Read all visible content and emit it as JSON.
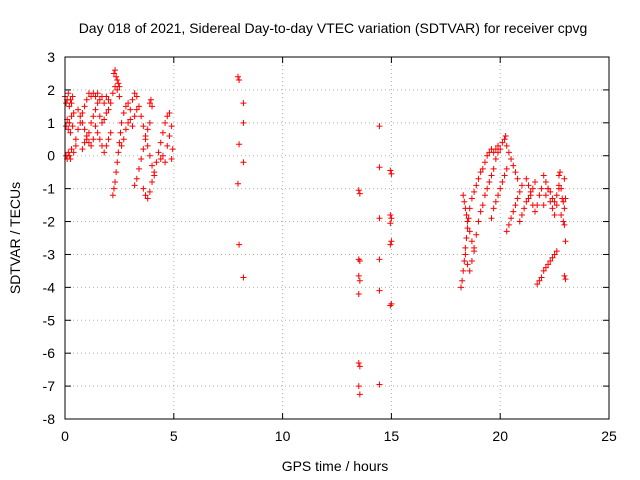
{
  "chart_data": {
    "type": "scatter",
    "title": "Day 018 of 2021, Sidereal Day-to-day VTEC variation (SDTVAR) for receiver cpvg",
    "xlabel": "GPS time / hours",
    "ylabel": "SDTVAR / TECUs",
    "xlim": [
      0,
      25
    ],
    "ylim": [
      -8,
      3
    ],
    "xticks": [
      "0",
      "5",
      "10",
      "15",
      "20",
      "25"
    ],
    "yticks": [
      "-8",
      "-7",
      "-6",
      "-5",
      "-4",
      "-3",
      "-2",
      "-1",
      "0",
      "1",
      "2",
      "3"
    ],
    "grid": true,
    "marker": "+",
    "color": "#ff0000",
    "series": [
      {
        "name": "SDTVAR",
        "points": [
          [
            0.0,
            1.8
          ],
          [
            0.05,
            1.6
          ],
          [
            0.1,
            1.7
          ],
          [
            0.15,
            1.9
          ],
          [
            0.2,
            1.5
          ],
          [
            0.25,
            1.7
          ],
          [
            0.3,
            1.6
          ],
          [
            0.35,
            1.8
          ],
          [
            0.05,
            0.9
          ],
          [
            0.1,
            1.1
          ],
          [
            0.15,
            0.8
          ],
          [
            0.2,
            1.0
          ],
          [
            0.25,
            0.7
          ],
          [
            0.3,
            1.2
          ],
          [
            0.35,
            0.9
          ],
          [
            0.4,
            1.3
          ],
          [
            0.05,
            0.0
          ],
          [
            0.1,
            -0.1
          ],
          [
            0.15,
            0.1
          ],
          [
            0.2,
            0.0
          ],
          [
            0.25,
            -0.1
          ],
          [
            0.3,
            0.2
          ],
          [
            0.4,
            0.1
          ],
          [
            0.5,
            0.3
          ],
          [
            0.5,
            0.5
          ],
          [
            0.6,
            0.8
          ],
          [
            0.7,
            1.0
          ],
          [
            0.8,
            1.3
          ],
          [
            0.9,
            1.5
          ],
          [
            1.0,
            1.7
          ],
          [
            1.1,
            1.9
          ],
          [
            1.2,
            1.8
          ],
          [
            0.6,
            1.4
          ],
          [
            0.7,
            1.2
          ],
          [
            0.8,
            1.0
          ],
          [
            0.9,
            0.8
          ],
          [
            1.0,
            0.6
          ],
          [
            1.1,
            0.4
          ],
          [
            1.2,
            0.3
          ],
          [
            1.3,
            0.5
          ],
          [
            0.8,
            0.2
          ],
          [
            0.9,
            0.4
          ],
          [
            1.0,
            0.5
          ],
          [
            1.1,
            0.7
          ],
          [
            1.2,
            1.0
          ],
          [
            1.3,
            1.2
          ],
          [
            1.4,
            1.4
          ],
          [
            1.5,
            1.6
          ],
          [
            1.3,
            1.9
          ],
          [
            1.4,
            1.8
          ],
          [
            1.5,
            1.9
          ],
          [
            1.6,
            1.7
          ],
          [
            1.7,
            1.8
          ],
          [
            1.8,
            1.6
          ],
          [
            1.9,
            1.8
          ],
          [
            2.0,
            1.7
          ],
          [
            1.4,
            0.9
          ],
          [
            1.5,
            0.7
          ],
          [
            1.6,
            0.5
          ],
          [
            1.7,
            0.3
          ],
          [
            1.8,
            0.1
          ],
          [
            1.9,
            0.3
          ],
          [
            2.0,
            0.5
          ],
          [
            2.1,
            0.7
          ],
          [
            1.6,
            1.2
          ],
          [
            1.7,
            1.0
          ],
          [
            1.8,
            1.1
          ],
          [
            1.9,
            1.3
          ],
          [
            2.0,
            1.4
          ],
          [
            2.1,
            1.6
          ],
          [
            2.2,
            1.9
          ],
          [
            2.3,
            2.1
          ],
          [
            2.25,
            2.5
          ],
          [
            2.3,
            2.6
          ],
          [
            2.35,
            2.4
          ],
          [
            2.4,
            2.3
          ],
          [
            2.45,
            2.2
          ],
          [
            2.5,
            2.1
          ],
          [
            2.4,
            2.0
          ],
          [
            2.5,
            1.8
          ],
          [
            2.2,
            -1.2
          ],
          [
            2.25,
            -1.0
          ],
          [
            2.3,
            -0.8
          ],
          [
            2.35,
            -0.5
          ],
          [
            2.4,
            -0.2
          ],
          [
            2.45,
            0.1
          ],
          [
            2.5,
            0.4
          ],
          [
            2.55,
            0.7
          ],
          [
            2.6,
            1.0
          ],
          [
            2.7,
            1.3
          ],
          [
            2.8,
            1.5
          ],
          [
            2.9,
            1.6
          ],
          [
            3.0,
            1.4
          ],
          [
            3.1,
            1.7
          ],
          [
            3.2,
            1.9
          ],
          [
            3.3,
            1.8
          ],
          [
            2.6,
            0.3
          ],
          [
            2.7,
            0.5
          ],
          [
            2.8,
            0.8
          ],
          [
            2.9,
            1.0
          ],
          [
            3.0,
            1.1
          ],
          [
            3.1,
            0.9
          ],
          [
            3.2,
            1.2
          ],
          [
            3.3,
            1.4
          ],
          [
            3.2,
            -0.9
          ],
          [
            3.3,
            -0.7
          ],
          [
            3.4,
            -0.4
          ],
          [
            3.5,
            -0.1
          ],
          [
            3.6,
            0.2
          ],
          [
            3.7,
            0.5
          ],
          [
            3.8,
            0.8
          ],
          [
            3.9,
            1.0
          ],
          [
            3.4,
            1.5
          ],
          [
            3.5,
            1.2
          ],
          [
            3.6,
            0.9
          ],
          [
            3.7,
            0.6
          ],
          [
            3.8,
            0.3
          ],
          [
            3.9,
            0.0
          ],
          [
            4.0,
            -0.3
          ],
          [
            4.1,
            -0.6
          ],
          [
            3.6,
            -1.0
          ],
          [
            3.7,
            -1.2
          ],
          [
            3.8,
            -1.3
          ],
          [
            3.9,
            -1.1
          ],
          [
            4.0,
            -0.8
          ],
          [
            4.1,
            -0.5
          ],
          [
            4.2,
            -0.2
          ],
          [
            4.3,
            0.1
          ],
          [
            3.9,
            1.6
          ],
          [
            3.95,
            1.7
          ],
          [
            4.0,
            1.5
          ],
          [
            4.4,
            0.4
          ],
          [
            4.5,
            0.7
          ],
          [
            4.6,
            1.0
          ],
          [
            4.7,
            1.2
          ],
          [
            4.8,
            1.3
          ],
          [
            4.4,
            -0.1
          ],
          [
            4.5,
            0.0
          ],
          [
            4.6,
            -0.2
          ],
          [
            4.7,
            0.3
          ],
          [
            4.8,
            0.6
          ],
          [
            4.9,
            0.9
          ],
          [
            4.95,
            0.2
          ],
          [
            4.9,
            -0.1
          ],
          [
            7.95,
            2.4
          ],
          [
            8.0,
            2.3
          ],
          [
            8.2,
            1.6
          ],
          [
            8.2,
            1.0
          ],
          [
            8.0,
            0.35
          ],
          [
            8.2,
            -0.2
          ],
          [
            7.95,
            -0.85
          ],
          [
            8.0,
            -2.7
          ],
          [
            8.2,
            -3.7
          ],
          [
            13.5,
            -1.05
          ],
          [
            13.55,
            -1.15
          ],
          [
            13.5,
            -3.15
          ],
          [
            13.55,
            -3.2
          ],
          [
            13.5,
            -3.65
          ],
          [
            13.55,
            -3.8
          ],
          [
            13.5,
            -4.2
          ],
          [
            13.5,
            -6.3
          ],
          [
            13.55,
            -6.4
          ],
          [
            13.5,
            -7.0
          ],
          [
            13.55,
            -7.25
          ],
          [
            14.45,
            0.9
          ],
          [
            14.45,
            -0.35
          ],
          [
            14.45,
            -1.9
          ],
          [
            14.45,
            -3.15
          ],
          [
            14.45,
            -4.1
          ],
          [
            14.45,
            -6.95
          ],
          [
            14.95,
            -0.45
          ],
          [
            15.0,
            -0.55
          ],
          [
            14.95,
            -1.8
          ],
          [
            15.0,
            -1.9
          ],
          [
            14.95,
            -2.05
          ],
          [
            15.0,
            -2.6
          ],
          [
            14.95,
            -2.7
          ],
          [
            15.0,
            -4.5
          ],
          [
            14.95,
            -4.55
          ],
          [
            18.2,
            -4.0
          ],
          [
            18.25,
            -3.8
          ],
          [
            18.3,
            -3.5
          ],
          [
            18.35,
            -3.2
          ],
          [
            18.4,
            -2.8
          ],
          [
            18.45,
            -2.5
          ],
          [
            18.5,
            -2.2
          ],
          [
            18.55,
            -1.9
          ],
          [
            18.3,
            -1.2
          ],
          [
            18.35,
            -1.4
          ],
          [
            18.4,
            -1.6
          ],
          [
            18.45,
            -1.8
          ],
          [
            18.5,
            -2.0
          ],
          [
            18.6,
            -2.3
          ],
          [
            18.7,
            -2.6
          ],
          [
            18.8,
            -2.9
          ],
          [
            18.4,
            -3.0
          ],
          [
            18.5,
            -3.3
          ],
          [
            18.6,
            -3.5
          ],
          [
            18.7,
            -3.2
          ],
          [
            18.8,
            -2.8
          ],
          [
            18.9,
            -2.4
          ],
          [
            19.0,
            -2.0
          ],
          [
            19.1,
            -1.7
          ],
          [
            18.6,
            -1.6
          ],
          [
            18.7,
            -1.3
          ],
          [
            18.8,
            -1.1
          ],
          [
            18.9,
            -0.9
          ],
          [
            19.0,
            -0.7
          ],
          [
            19.1,
            -0.5
          ],
          [
            19.2,
            -0.4
          ],
          [
            19.3,
            -0.2
          ],
          [
            19.2,
            -1.5
          ],
          [
            19.3,
            -1.2
          ],
          [
            19.4,
            -1.0
          ],
          [
            19.5,
            -0.8
          ],
          [
            19.6,
            -0.6
          ],
          [
            19.7,
            -0.4
          ],
          [
            19.8,
            -0.1
          ],
          [
            19.9,
            0.1
          ],
          [
            19.4,
            0.0
          ],
          [
            19.5,
            0.1
          ],
          [
            19.6,
            0.2
          ],
          [
            19.7,
            0.1
          ],
          [
            19.8,
            0.2
          ],
          [
            19.9,
            0.3
          ],
          [
            20.0,
            0.2
          ],
          [
            20.1,
            0.4
          ],
          [
            19.6,
            -1.9
          ],
          [
            19.7,
            -1.6
          ],
          [
            19.8,
            -1.4
          ],
          [
            19.9,
            -1.2
          ],
          [
            20.0,
            -1.0
          ],
          [
            20.1,
            -0.8
          ],
          [
            20.2,
            -0.6
          ],
          [
            20.3,
            -0.4
          ],
          [
            20.2,
            0.5
          ],
          [
            20.25,
            0.6
          ],
          [
            20.3,
            0.3
          ],
          [
            20.4,
            0.1
          ],
          [
            20.5,
            -0.1
          ],
          [
            20.6,
            -0.3
          ],
          [
            20.7,
            -0.5
          ],
          [
            20.8,
            -0.7
          ],
          [
            20.3,
            -2.3
          ],
          [
            20.4,
            -2.1
          ],
          [
            20.5,
            -1.9
          ],
          [
            20.6,
            -1.7
          ],
          [
            20.7,
            -1.5
          ],
          [
            20.8,
            -1.3
          ],
          [
            20.9,
            -1.1
          ],
          [
            21.0,
            -0.9
          ],
          [
            20.9,
            -2.0
          ],
          [
            21.0,
            -1.8
          ],
          [
            21.1,
            -1.6
          ],
          [
            21.2,
            -1.4
          ],
          [
            21.3,
            -1.3
          ],
          [
            21.4,
            -1.1
          ],
          [
            21.5,
            -1.0
          ],
          [
            21.6,
            -0.8
          ],
          [
            21.2,
            -0.7
          ],
          [
            21.3,
            -0.9
          ],
          [
            21.4,
            -1.2
          ],
          [
            21.5,
            -1.5
          ],
          [
            21.6,
            -1.7
          ],
          [
            21.7,
            -1.5
          ],
          [
            21.8,
            -1.2
          ],
          [
            21.9,
            -1.0
          ],
          [
            21.7,
            -3.9
          ],
          [
            21.8,
            -3.8
          ],
          [
            21.9,
            -3.7
          ],
          [
            22.0,
            -3.5
          ],
          [
            22.1,
            -3.4
          ],
          [
            22.2,
            -3.3
          ],
          [
            22.3,
            -3.2
          ],
          [
            22.4,
            -3.1
          ],
          [
            22.5,
            -3.0
          ],
          [
            22.6,
            -2.9
          ],
          [
            22.0,
            -1.5
          ],
          [
            22.1,
            -1.2
          ],
          [
            22.2,
            -1.0
          ],
          [
            22.3,
            -1.1
          ],
          [
            22.4,
            -1.3
          ],
          [
            22.5,
            -1.4
          ],
          [
            22.6,
            -1.2
          ],
          [
            22.7,
            -1.0
          ],
          [
            22.0,
            -0.6
          ],
          [
            22.1,
            -0.8
          ],
          [
            22.2,
            -1.0
          ],
          [
            22.3,
            -1.4
          ],
          [
            22.4,
            -1.6
          ],
          [
            22.5,
            -1.8
          ],
          [
            22.6,
            -1.5
          ],
          [
            22.7,
            -0.9
          ],
          [
            22.7,
            -0.6
          ],
          [
            22.75,
            -0.5
          ],
          [
            22.8,
            -1.0
          ],
          [
            22.85,
            -1.3
          ],
          [
            22.9,
            -1.4
          ],
          [
            22.95,
            -1.6
          ],
          [
            22.8,
            -1.8
          ],
          [
            22.9,
            -2.0
          ],
          [
            22.95,
            -0.7
          ],
          [
            23.0,
            -1.3
          ],
          [
            22.95,
            -2.1
          ],
          [
            23.0,
            -2.6
          ],
          [
            22.95,
            -3.65
          ],
          [
            23.0,
            -3.75
          ]
        ]
      }
    ]
  }
}
